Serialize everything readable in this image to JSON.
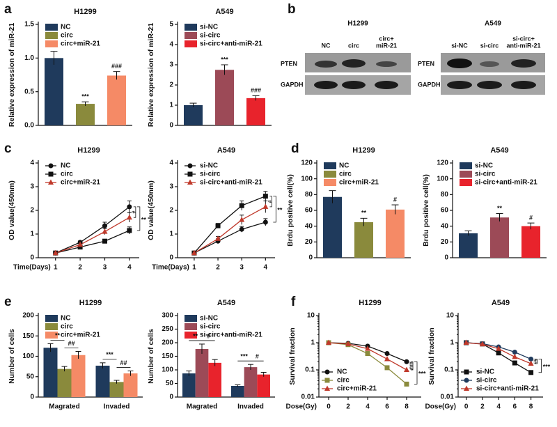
{
  "panels": [
    "a",
    "b",
    "c",
    "d",
    "e",
    "f"
  ],
  "blots": [
    {
      "title": "H1299",
      "lanes": [
        [
          "NC"
        ],
        [
          "circ"
        ],
        [
          "circ+",
          "miR-21"
        ]
      ],
      "rows": [
        "PTEN",
        "GAPDH"
      ]
    },
    {
      "title": "A549",
      "lanes": [
        [
          "si-NC"
        ],
        [
          "si-circ"
        ],
        [
          "si-circ+",
          "anti-miR-21"
        ]
      ],
      "rows": [
        "PTEN",
        "GAPDH"
      ]
    }
  ],
  "chart_data": [
    {
      "type": "bar",
      "title": "H1299",
      "ylabel": "Relative expression of miR-21",
      "categories": [
        "NC",
        "circ",
        "circ+miR-21"
      ],
      "values": [
        1.0,
        0.32,
        0.74
      ],
      "errors": [
        0.1,
        0.03,
        0.06
      ],
      "colors": [
        "#1f3a5c",
        "#8a8a3c",
        "#f58a66"
      ],
      "annotations": [
        null,
        "***",
        "###"
      ],
      "ylim": [
        0,
        1.5
      ],
      "yticks": [
        {
          "value": 0,
          "label": "0.0"
        },
        {
          "value": 0.5,
          "label": "0.5"
        },
        {
          "value": 1,
          "label": "1.0"
        },
        {
          "value": 1.5,
          "label": "1.5"
        }
      ],
      "legend": "upper left"
    },
    {
      "type": "bar",
      "title": "A549",
      "ylabel": "Relative expression of miR-21",
      "categories": [
        "si-NC",
        "si-circ",
        "si-circ+anti-miR-21"
      ],
      "values": [
        1.0,
        2.75,
        1.35
      ],
      "errors": [
        0.1,
        0.25,
        0.12
      ],
      "colors": [
        "#1f3a5c",
        "#9c4a57",
        "#e8232c"
      ],
      "annotations": [
        null,
        "***",
        "###"
      ],
      "ylim": [
        0,
        5
      ],
      "yticks": [
        0,
        1,
        2,
        3,
        4,
        5
      ],
      "legend": "upper left"
    },
    {
      "type": "line",
      "title": "H1299",
      "ylabel": "OD value(450nm)",
      "xlabel": "Time(Days)",
      "x": [
        1,
        2,
        3,
        4
      ],
      "xlim": [
        0.3,
        4.4
      ],
      "xticks": [
        1,
        2,
        3,
        4
      ],
      "ylim": [
        0,
        4
      ],
      "yticks": [
        0,
        1,
        2,
        3,
        4
      ],
      "series": [
        {
          "name": "NC",
          "color": "#111111",
          "marker": "circle",
          "values": [
            0.2,
            0.65,
            1.35,
            2.15
          ],
          "errors": [
            0.03,
            0.06,
            0.15,
            0.25
          ]
        },
        {
          "name": "circ",
          "color": "#111111",
          "marker": "square",
          "values": [
            0.2,
            0.45,
            0.7,
            1.15
          ],
          "errors": [
            0.03,
            0.05,
            0.08,
            0.15
          ]
        },
        {
          "name": "circ+miR-21",
          "color": "#c0392b",
          "marker": "triangle",
          "values": [
            0.2,
            0.55,
            1.1,
            1.7
          ],
          "errors": [
            0.03,
            0.05,
            0.12,
            0.2
          ]
        }
      ],
      "annotations": [
        "#",
        "**"
      ],
      "legend": "upper left"
    },
    {
      "type": "line",
      "title": "A549",
      "ylabel": "OD value(450nm)",
      "xlabel": "Time(Days)",
      "x": [
        1,
        2,
        3,
        4
      ],
      "xlim": [
        0.3,
        4.4
      ],
      "xticks": [
        1,
        2,
        3,
        4
      ],
      "ylim": [
        0,
        4
      ],
      "yticks": [
        0,
        1,
        2,
        3,
        4
      ],
      "series": [
        {
          "name": "si-NC",
          "color": "#111111",
          "marker": "circle",
          "values": [
            0.2,
            0.7,
            1.2,
            1.5
          ],
          "errors": [
            0.03,
            0.1,
            0.12,
            0.15
          ]
        },
        {
          "name": "si-circ",
          "color": "#111111",
          "marker": "square",
          "values": [
            0.2,
            1.35,
            2.2,
            2.6
          ],
          "errors": [
            0.03,
            0.1,
            0.2,
            0.2
          ]
        },
        {
          "name": "si-circ+anti-miR-21",
          "color": "#c0392b",
          "marker": "triangle",
          "values": [
            0.2,
            0.8,
            1.6,
            2.15
          ],
          "errors": [
            0.03,
            0.1,
            0.2,
            0.25
          ]
        }
      ],
      "annotations": [
        "#",
        "**"
      ],
      "legend": "upper left"
    },
    {
      "type": "bar",
      "title": "H1299",
      "ylabel": "Brdu positive cell(%)",
      "categories": [
        "NC",
        "circ",
        "circ+miR-21"
      ],
      "values": [
        77,
        45,
        61
      ],
      "errors": [
        8,
        5,
        6
      ],
      "colors": [
        "#1f3a5c",
        "#8a8a3c",
        "#f58a66"
      ],
      "annotations": [
        null,
        "**",
        "#"
      ],
      "ylim": [
        0,
        120
      ],
      "yticks": [
        0,
        20,
        40,
        60,
        80,
        100,
        120
      ],
      "legend": "upper left"
    },
    {
      "type": "bar",
      "title": "A549",
      "ylabel": "Brdu positive cell(%)",
      "categories": [
        "si-NC",
        "si-circ",
        "si-circ+anti-miR-21"
      ],
      "values": [
        31,
        51,
        40
      ],
      "errors": [
        3,
        5,
        4
      ],
      "colors": [
        "#1f3a5c",
        "#9c4a57",
        "#e8232c"
      ],
      "annotations": [
        null,
        "**",
        "#"
      ],
      "ylim": [
        0,
        120
      ],
      "yticks": [
        0,
        20,
        40,
        60,
        80,
        100,
        120
      ],
      "legend": "upper left"
    },
    {
      "type": "grouped-bar",
      "title": "H1299",
      "ylabel": "Number of cells",
      "categories": [
        "Magrated",
        "Invaded"
      ],
      "series": [
        {
          "name": "NC",
          "color": "#1f3a5c",
          "values": [
            121,
            77
          ],
          "errors": [
            10,
            7
          ]
        },
        {
          "name": "circ",
          "color": "#8a8a3c",
          "values": [
            69,
            37
          ],
          "errors": [
            6,
            4
          ]
        },
        {
          "name": "circ+miR-21",
          "color": "#f58a66",
          "values": [
            103,
            58
          ],
          "errors": [
            9,
            6
          ]
        }
      ],
      "annotations": [
        [
          "**",
          "##"
        ],
        [
          "***",
          "##"
        ]
      ],
      "ylim": [
        0,
        200
      ],
      "yticks": [
        0,
        50,
        100,
        150,
        200
      ],
      "legend": "upper left"
    },
    {
      "type": "grouped-bar",
      "title": "A549",
      "ylabel": "Number of cells",
      "categories": [
        "Magrated",
        "Invaded"
      ],
      "series": [
        {
          "name": "si-NC",
          "color": "#1f3a5c",
          "values": [
            87,
            41
          ],
          "errors": [
            9,
            4
          ]
        },
        {
          "name": "si-circ",
          "color": "#9c4a57",
          "values": [
            177,
            110
          ],
          "errors": [
            18,
            10
          ]
        },
        {
          "name": "si-circ+anti-miR-21",
          "color": "#e8232c",
          "values": [
            126,
            83
          ],
          "errors": [
            12,
            8
          ]
        }
      ],
      "annotations": [
        [
          "**",
          "#"
        ],
        [
          "***",
          "#"
        ]
      ],
      "ylim": [
        0,
        300
      ],
      "yticks": [
        0,
        50,
        100,
        150,
        200,
        250,
        300
      ],
      "legend": "upper left"
    },
    {
      "type": "line",
      "title": "H1299",
      "ylabel": "Survival fraction",
      "xlabel": "Dose(Gy)",
      "yscale": "log",
      "x": [
        0,
        2,
        4,
        6,
        8
      ],
      "xlim": [
        -1,
        9.5
      ],
      "xticks": [
        0,
        2,
        4,
        6,
        8
      ],
      "ylim": [
        0.01,
        10
      ],
      "yticks": [
        0.01,
        0.1,
        1,
        10
      ],
      "series": [
        {
          "name": "NC",
          "color": "#111111",
          "marker": "circle",
          "values": [
            1,
            0.95,
            0.75,
            0.4,
            0.2
          ]
        },
        {
          "name": "circ",
          "color": "#8a8a3c",
          "marker": "square",
          "values": [
            1,
            0.85,
            0.4,
            0.12,
            0.03
          ]
        },
        {
          "name": "circ+miR-21",
          "color": "#c0392b",
          "marker": "triangle",
          "values": [
            1,
            0.9,
            0.6,
            0.25,
            0.1
          ]
        }
      ],
      "annotations": [
        "###",
        "***"
      ],
      "legend": "lower left"
    },
    {
      "type": "line",
      "title": "A549",
      "ylabel": "Survival fraction",
      "xlabel": "Dose(Gy)",
      "yscale": "log",
      "x": [
        0,
        2,
        4,
        6,
        8
      ],
      "xlim": [
        -1,
        9.5
      ],
      "xticks": [
        0,
        2,
        4,
        6,
        8
      ],
      "ylim": [
        0.01,
        10
      ],
      "yticks": [
        0.01,
        0.1,
        1,
        10
      ],
      "series": [
        {
          "name": "si-NC",
          "color": "#111111",
          "marker": "square",
          "values": [
            1,
            0.9,
            0.42,
            0.18,
            0.08
          ]
        },
        {
          "name": "si-circ",
          "color": "#1f3a5c",
          "marker": "circle",
          "values": [
            1,
            0.92,
            0.7,
            0.45,
            0.25
          ]
        },
        {
          "name": "si-circ+anti-miR-21",
          "color": "#c0392b",
          "marker": "triangle",
          "values": [
            1,
            0.88,
            0.6,
            0.3,
            0.17
          ]
        }
      ],
      "annotations": [
        "##",
        "***"
      ],
      "legend": "lower left"
    }
  ]
}
